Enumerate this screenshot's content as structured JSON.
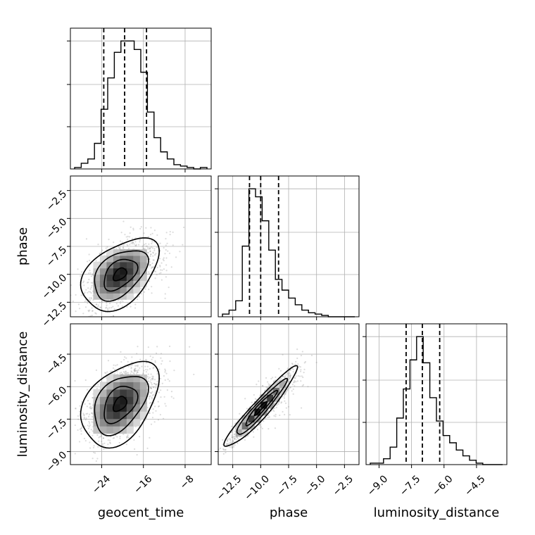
{
  "chart_data": {
    "type": "corner",
    "parameters": [
      "geocent_time",
      "phase",
      "luminosity_distance"
    ],
    "axis_labels": {
      "x": [
        "geocent_time",
        "phase",
        "luminosity_distance"
      ],
      "y": [
        "phase",
        "luminosity_distance"
      ]
    },
    "ranges": {
      "geocent_time": [
        -30,
        -3
      ],
      "phase": [
        -13.8,
        -1.2
      ],
      "luminosity_distance": [
        -9.6,
        -3.1
      ]
    },
    "ticks": {
      "geocent_time": [
        -24,
        -16,
        -8
      ],
      "phase": [
        -12.5,
        -10.0,
        -7.5,
        -5.0,
        -2.5
      ],
      "luminosity_distance": [
        -9.0,
        -7.5,
        -6.0,
        -4.5
      ]
    },
    "tick_labels": {
      "geocent_time": [
        "−24",
        "−16",
        "−8"
      ],
      "phase": [
        "−12.5",
        "−10.0",
        "−7.5",
        "−5.0",
        "−2.5"
      ],
      "luminosity_distance": [
        "−9.0",
        "−7.5",
        "−6.0",
        "−4.5"
      ]
    },
    "quantiles": {
      "geocent_time": [
        -23.6,
        -19.6,
        -15.4
      ],
      "phase": [
        -11.0,
        -10.0,
        -8.4
      ],
      "luminosity_distance": [
        -7.75,
        -7.0,
        -6.2
      ]
    },
    "histograms": {
      "geocent_time": {
        "bins": 20,
        "counts": [
          1,
          4,
          7,
          18,
          42,
          64,
          82,
          90,
          90,
          84,
          68,
          40,
          22,
          12,
          7,
          3,
          2,
          1,
          0,
          1
        ]
      },
      "phase": {
        "bins": 20,
        "counts": [
          2,
          5,
          12,
          53,
          96,
          90,
          72,
          50,
          28,
          20,
          14,
          9,
          5,
          3,
          2,
          1,
          0,
          0,
          0,
          0
        ]
      },
      "luminosity_distance": {
        "bins": 20,
        "counts": [
          1,
          1,
          4,
          12,
          32,
          52,
          72,
          88,
          70,
          46,
          30,
          20,
          15,
          10,
          6,
          3,
          1,
          0,
          0,
          0
        ]
      }
    },
    "joint": [
      {
        "x": "geocent_time",
        "y": "phase",
        "mean": [
          -20.5,
          -10.0
        ],
        "std": [
          3.2,
          1.4
        ],
        "corr": 0.45
      },
      {
        "x": "geocent_time",
        "y": "luminosity_distance",
        "mean": [
          -20.5,
          -6.8
        ],
        "std": [
          3.2,
          0.85
        ],
        "corr": 0.42
      },
      {
        "x": "phase",
        "y": "luminosity_distance",
        "mean": [
          -10.0,
          -7.0
        ],
        "std": [
          1.4,
          0.8
        ],
        "corr": 0.95
      }
    ],
    "grid": true,
    "colors": {
      "line": "#000000",
      "scatter": "#9a9a9a",
      "grid": "#b0b0b0"
    }
  }
}
